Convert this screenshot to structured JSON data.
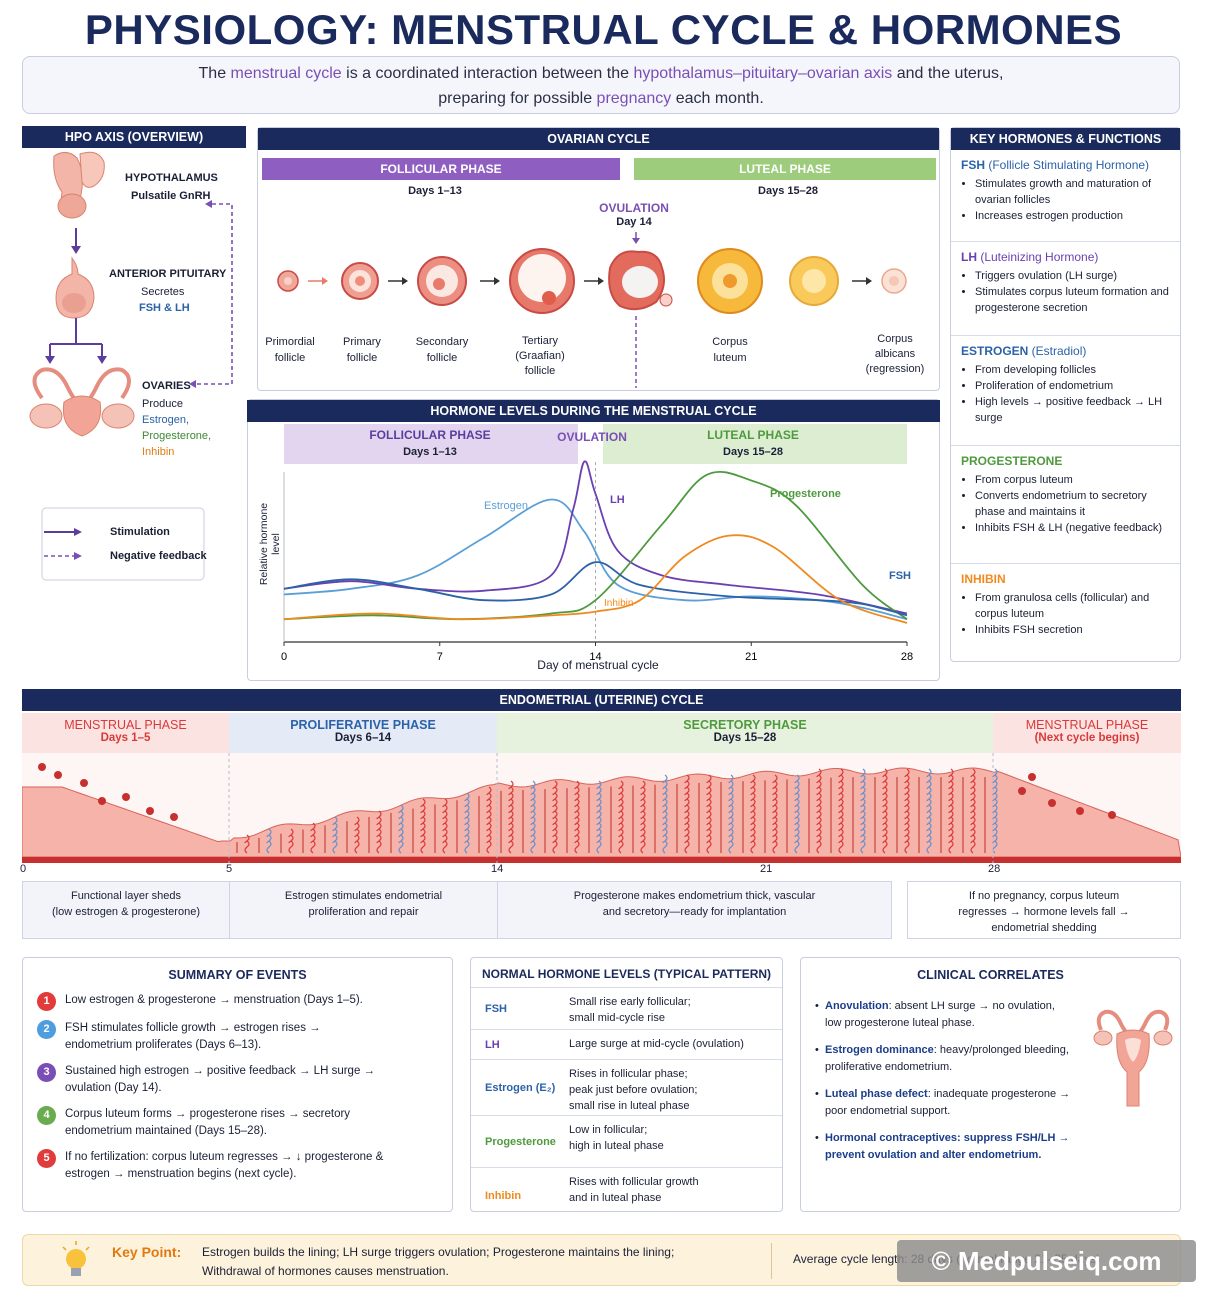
{
  "title": "PHYSIOLOGY: MENSTRUAL CYCLE & HORMONES",
  "intro": {
    "t1": "The ",
    "h1": "menstrual cycle",
    "t2": " is a coordinated interaction between the ",
    "h2": "hypothalamus–pituitary–ovarian axis",
    "t3": " and the uterus,",
    "t4": "preparing for possible ",
    "h3": "pregnancy",
    "t5": " each month."
  },
  "hpo": {
    "header": "HPO AXIS (OVERVIEW)",
    "hypothalamus": "HYPOTHALAMUS",
    "gnrh": "Pulsatile GnRH",
    "pituitary": "ANTERIOR PITUITARY",
    "secretes": "Secretes",
    "fshlh": "FSH & LH",
    "ovaries": "OVARIES",
    "produce": "Produce",
    "estrogen": "Estrogen,",
    "progesterone": "Progesterone,",
    "inhibin": "Inhibin",
    "legend_stim": "Stimulation",
    "legend_neg": "Negative feedback"
  },
  "ovarian": {
    "header": "OVARIAN CYCLE",
    "follicular": "FOLLICULAR PHASE",
    "follicular_days": "Days 1–13",
    "luteal": "LUTEAL PHASE",
    "luteal_days": "Days 15–28",
    "ovulation": "OVULATION",
    "ovulation_day": "Day 14",
    "stages": [
      {
        "l1": "Primordial",
        "l2": "follicle",
        "l3": ""
      },
      {
        "l1": "Primary",
        "l2": "follicle",
        "l3": ""
      },
      {
        "l1": "Secondary",
        "l2": "follicle",
        "l3": ""
      },
      {
        "l1": "Tertiary",
        "l2": "(Graafian)",
        "l3": "follicle"
      },
      {
        "l1": "Corpus",
        "l2": "luteum",
        "l3": ""
      },
      {
        "l1": "Corpus",
        "l2": "albicans",
        "l3": "(regression)"
      }
    ]
  },
  "chart_data": {
    "type": "line",
    "title": "HORMONE LEVELS DURING THE MENSTRUAL CYCLE",
    "xlabel": "Day of menstrual cycle",
    "ylabel": "Relative hormone level",
    "x_ticks": [
      "0",
      "7",
      "14",
      "21",
      "28"
    ],
    "xlim": [
      0,
      28
    ],
    "ylim": [
      0,
      100
    ],
    "phase_follicular": "FOLLICULAR PHASE",
    "phase_follicular_days": "Days 1–13",
    "phase_ovulation": "OVULATION",
    "phase_luteal": "LUTEAL PHASE",
    "phase_luteal_days": "Days 15–28",
    "series": [
      {
        "name": "Estrogen",
        "color": "#5b9fd6",
        "x": [
          0,
          3,
          6,
          9,
          12,
          13.5,
          15,
          18,
          21,
          24,
          26,
          28
        ],
        "y": [
          25,
          28,
          35,
          55,
          75,
          58,
          30,
          22,
          24,
          22,
          18,
          12
        ]
      },
      {
        "name": "LH",
        "color": "#6a3fb0",
        "x": [
          0,
          3,
          6,
          9,
          12,
          13,
          13.5,
          14,
          15,
          17,
          20,
          24,
          28
        ],
        "y": [
          28,
          32,
          28,
          27,
          35,
          70,
          95,
          78,
          48,
          35,
          30,
          25,
          15
        ]
      },
      {
        "name": "Progesterone",
        "color": "#4f9a3e",
        "x": [
          0,
          4,
          8,
          12,
          14,
          17,
          19,
          21,
          23,
          26,
          28
        ],
        "y": [
          12,
          14,
          12,
          15,
          22,
          62,
          88,
          85,
          72,
          30,
          12
        ]
      },
      {
        "name": "FSH",
        "color": "#2c62a8",
        "x": [
          0,
          3,
          6,
          9,
          12,
          14,
          16,
          20,
          24,
          26,
          28
        ],
        "y": [
          28,
          33,
          28,
          22,
          25,
          42,
          30,
          24,
          22,
          20,
          14
        ]
      },
      {
        "name": "Inhibin",
        "color": "#f08a1e",
        "x": [
          0,
          4,
          8,
          12,
          14,
          16,
          18,
          20,
          22,
          25,
          28
        ],
        "y": [
          12,
          15,
          12,
          14,
          16,
          22,
          45,
          56,
          50,
          22,
          10
        ]
      }
    ]
  },
  "key_hormones": {
    "header": "KEY HORMONES & FUNCTIONS",
    "fsh_a": "FSH",
    "fsh_b": " (Follicle Stimulating Hormone)",
    "fsh_1": "Stimulates growth and maturation of ovarian follicles",
    "fsh_2": "Increases estrogen production",
    "lh_a": "LH",
    "lh_b": " (Luteinizing Hormone)",
    "lh_1": "Triggers ovulation (LH surge)",
    "lh_2": "Stimulates corpus luteum formation and progesterone secretion",
    "es_a": "ESTROGEN",
    "es_b": " (Estradiol)",
    "es_1": "From developing follicles",
    "es_2": "Proliferation of endometrium",
    "es_3": "High levels → positive feedback → LH surge",
    "pr_a": "PROGESTERONE",
    "pr_1": "From corpus luteum",
    "pr_2": "Converts endometrium to secretory phase and maintains it",
    "pr_3": "Inhibits FSH & LH (negative feedback)",
    "in_a": "INHIBIN",
    "in_1": "From granulosa cells (follicular) and corpus luteum",
    "in_2": "Inhibits FSH secretion"
  },
  "endometrial": {
    "header": "ENDOMETRIAL (UTERINE) CYCLE",
    "p1": "MENSTRUAL PHASE",
    "p1d": "Days 1–5",
    "p2": "PROLIFERATIVE PHASE",
    "p2d": "Days 6–14",
    "p3": "SECRETORY PHASE",
    "p3d": "Days 15–28",
    "p4": "MENSTRUAL PHASE",
    "p4d": "(Next cycle begins)",
    "ticks": [
      "0",
      "5",
      "14",
      "21",
      "28"
    ],
    "d1": "Functional layer sheds",
    "d1b": "(low estrogen & progesterone)",
    "d2": "Estrogen stimulates endometrial",
    "d2b": "proliferation and repair",
    "d3": "Progesterone makes endometrium thick, vascular",
    "d3b": "and secretory—ready for implantation",
    "d4": "If no pregnancy, corpus luteum",
    "d4b": "regresses → hormone levels fall →",
    "d4c": "endometrial shedding"
  },
  "summary": {
    "header": "SUMMARY OF EVENTS",
    "items": [
      {
        "n": "1",
        "color": "#e23b3b",
        "a": "Low estrogen & progesterone → menstruation (Days 1–5).",
        "b": ""
      },
      {
        "n": "2",
        "color": "#4d9de0",
        "a": "FSH stimulates follicle growth → estrogen rises →",
        "b": "endometrium proliferates (Days 6–13)."
      },
      {
        "n": "3",
        "color": "#7a4fb5",
        "a": "Sustained high estrogen → positive feedback → LH surge →",
        "b": "ovulation (Day 14)."
      },
      {
        "n": "4",
        "color": "#6aab4f",
        "a": "Corpus luteum forms → progesterone rises → secretory",
        "b": "endometrium maintained (Days 15–28)."
      },
      {
        "n": "5",
        "color": "#e23b3b",
        "a": "If no fertilization: corpus luteum regresses → ↓ progesterone &",
        "b": "estrogen → menstruation begins (next cycle)."
      }
    ]
  },
  "normal": {
    "header": "NORMAL HORMONE LEVELS (TYPICAL PATTERN)",
    "rows": [
      {
        "k": "FSH",
        "color": "#2c62a8",
        "v1": "Small rise early follicular;",
        "v2": "small mid-cycle rise",
        "v3": ""
      },
      {
        "k": "LH",
        "color": "#6a3fb0",
        "v1": "Large surge at mid-cycle (ovulation)",
        "v2": "",
        "v3": ""
      },
      {
        "k": "Estrogen (E₂)",
        "color": "#2c62a8",
        "v1": "Rises in follicular phase;",
        "v2": "peak just before ovulation;",
        "v3": "small rise in luteal phase"
      },
      {
        "k": "Progesterone",
        "color": "#4f9a3e",
        "v1": "Low in follicular;",
        "v2": "high in luteal phase",
        "v3": ""
      },
      {
        "k": "Inhibin",
        "color": "#f08a1e",
        "v1": "Rises with follicular growth",
        "v2": "and in luteal phase",
        "v3": ""
      }
    ]
  },
  "clinical": {
    "header": "CLINICAL CORRELATES",
    "items": [
      {
        "b": "Anovulation",
        "t": ": absent LH surge → no ovulation,",
        "t2": "low progesterone luteal phase."
      },
      {
        "b": "Estrogen dominance",
        "t": ": heavy/prolonged bleeding,",
        "t2": "proliferative endometrium."
      },
      {
        "b": "Luteal phase defect",
        "t": ": inadequate progesterone →",
        "t2": "poor endometrial support."
      },
      {
        "b": "Hormonal contraceptives",
        "t": ": suppress FSH/LH →",
        "t2": "prevent ovulation and alter endometrium."
      }
    ]
  },
  "keypoint": {
    "label": "Key Point:",
    "l1": "Estrogen builds the lining; LH surge triggers ovulation; Progesterone maintains the lining;",
    "l2": "Withdrawal of hormones causes menstruation.",
    "avg": "Average cycle length: 28 days (normal range 21–35 days)",
    "watermark": "© Medpulseiq.com"
  }
}
